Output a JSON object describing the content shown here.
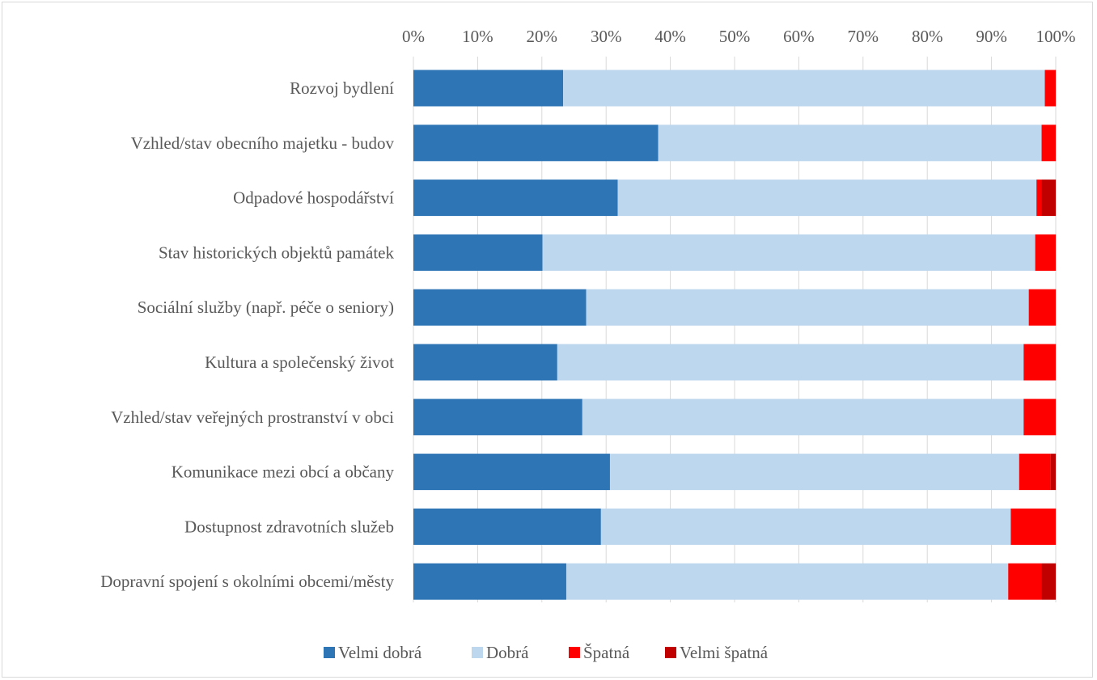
{
  "chart_data": {
    "type": "bar",
    "orientation": "horizontal",
    "stacked": "percent",
    "categories": [
      "Rozvoj bydlení",
      "Vzhled/stav obecního majetku - budov",
      "Odpadové hospodářství",
      "Stav historických objektů památek",
      "Sociální služby (např. péče o seniory)",
      "Kultura a společenský život",
      "Vzhled/stav veřejných prostranství v obci",
      "Komunikace mezi obcí a občany",
      "Dostupnost zdravotních služeb",
      "Dopravní spojení s okolními obcemi/městy"
    ],
    "series": [
      {
        "name": "Velmi dobrá",
        "color": "#2e75b6",
        "values": [
          23.3,
          38.1,
          31.8,
          20.1,
          26.9,
          22.4,
          26.3,
          30.6,
          29.2,
          23.8
        ]
      },
      {
        "name": "Dobrá",
        "color": "#bdd7ee",
        "values": [
          75.0,
          59.7,
          65.2,
          76.7,
          68.9,
          72.6,
          68.7,
          63.7,
          63.8,
          68.8
        ]
      },
      {
        "name": "Špatná",
        "color": "#ff0000",
        "values": [
          1.7,
          2.2,
          0.8,
          3.2,
          4.2,
          5.0,
          5.0,
          4.9,
          7.0,
          5.2
        ]
      },
      {
        "name": "Velmi špatná",
        "color": "#c00000",
        "values": [
          0.0,
          0.0,
          2.2,
          0.0,
          0.0,
          0.0,
          0.0,
          0.8,
          0.0,
          2.2
        ]
      }
    ],
    "x_ticks": [
      "0%",
      "10%",
      "20%",
      "30%",
      "40%",
      "50%",
      "60%",
      "70%",
      "80%",
      "90%",
      "100%"
    ],
    "xlim": [
      0,
      100
    ],
    "x_axis_position": "top",
    "grid": true,
    "legend_position": "bottom"
  }
}
